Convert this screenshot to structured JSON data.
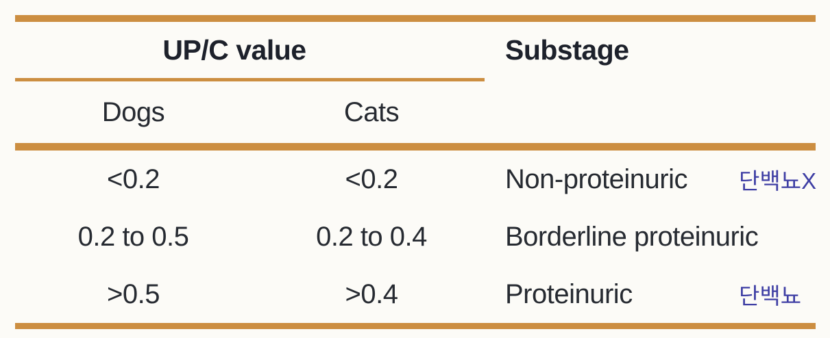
{
  "table": {
    "header": {
      "upc_label": "UP/C value",
      "substage_label": "Substage"
    },
    "subheader": {
      "dogs": "Dogs",
      "cats": "Cats"
    },
    "rows": [
      {
        "dogs": "<0.2",
        "cats": "<0.2",
        "substage": "Non-proteinuric",
        "annotation": "단백뇨X"
      },
      {
        "dogs": "0.2 to 0.5",
        "cats": "0.2 to 0.4",
        "substage": "Borderline proteinuric",
        "annotation": ""
      },
      {
        "dogs": ">0.5",
        "cats": ">0.4",
        "substage": "Proteinuric",
        "annotation": "단백뇨"
      }
    ]
  },
  "colors": {
    "rule": "#cc8e41",
    "text": "#262a31",
    "heading": "#1d212b",
    "annotation": "#3e3ea4",
    "background": "#fcfbf7"
  }
}
